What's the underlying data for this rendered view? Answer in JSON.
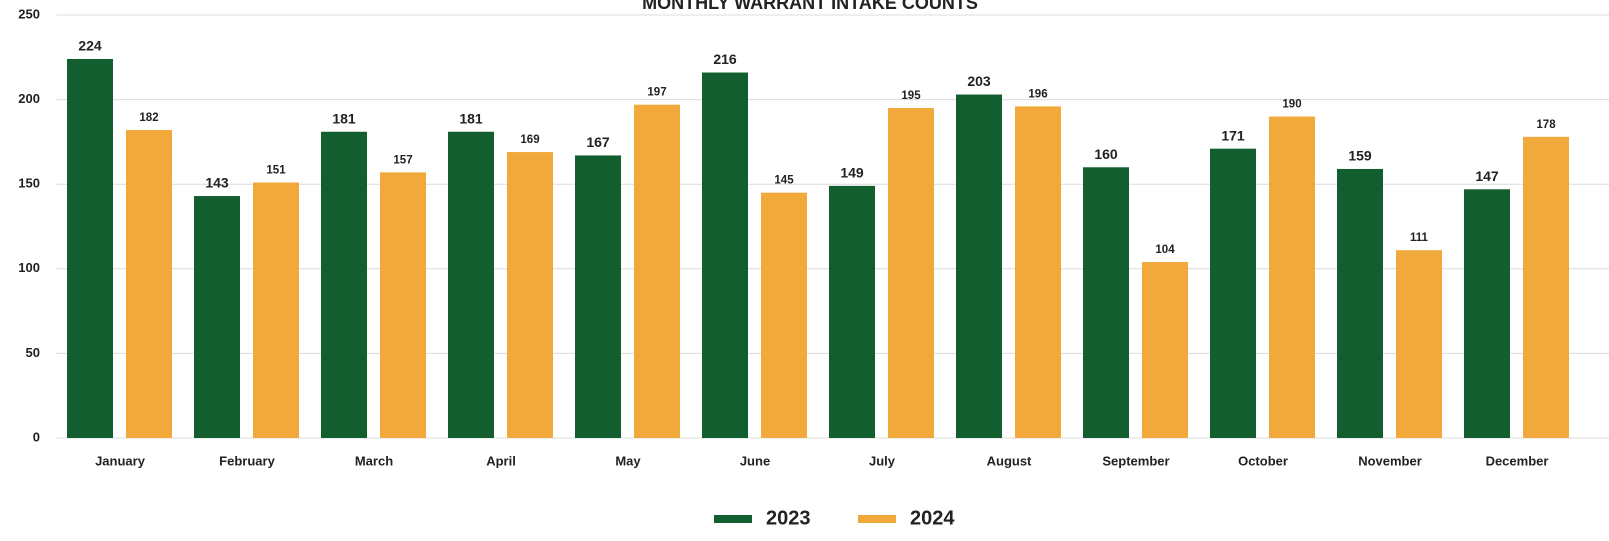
{
  "chart_data": {
    "type": "bar",
    "title": "MONTHLY WARRANT INTAKE COUNTS",
    "categories": [
      "January",
      "February",
      "March",
      "April",
      "May",
      "June",
      "July",
      "August",
      "September",
      "October",
      "November",
      "December"
    ],
    "series": [
      {
        "name": "2023",
        "color": "#135e2f",
        "values": [
          224,
          143,
          181,
          181,
          167,
          216,
          149,
          203,
          160,
          171,
          159,
          147
        ]
      },
      {
        "name": "2024",
        "color": "#f2a93b",
        "values": [
          182,
          151,
          157,
          169,
          197,
          145,
          195,
          196,
          104,
          190,
          111,
          178
        ]
      }
    ],
    "ylim": [
      0,
      250
    ],
    "yticks": [
      0,
      50,
      100,
      150,
      200,
      250
    ],
    "grid": true,
    "legend": "bottom"
  }
}
